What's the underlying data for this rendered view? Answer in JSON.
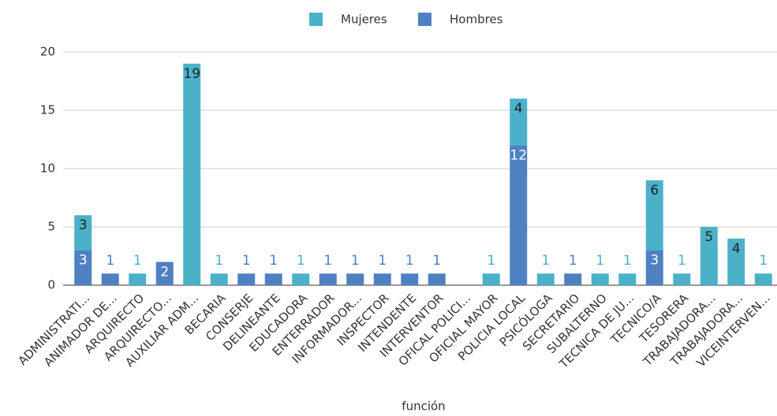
{
  "chart_data": {
    "type": "stacked_bar",
    "x_label": "función",
    "categories": [
      "ADMINISTRATI...",
      "ANIMADOR DE...",
      "ARQUIRECTO",
      "ARQUIRECTO...",
      "AUXILIAR ADM...",
      "BECARIA",
      "CONSERJE",
      "DELINEANTE",
      "EDUCADORA",
      "ENTERRADOR",
      "INFORMADOR...",
      "INSPECTOR",
      "INTENDENTE",
      "INTERVENTOR",
      "OFICAL POLICI...",
      "OFICIAL MAYOR",
      "POLICIA LOCAL",
      "PSICÓLOGA",
      "SECRETARIO",
      "SUBALTERNO",
      "TECNICA DE JU...",
      "TECNICO/A",
      "TESORERA",
      "TRABAJADORA...",
      "TRABAJADORA...",
      "VICEINTERVEN..."
    ],
    "series": [
      {
        "name": "Hombres",
        "color": "#4f81c2",
        "values": [
          3,
          1,
          null,
          2,
          null,
          null,
          1,
          1,
          null,
          1,
          1,
          1,
          1,
          1,
          null,
          null,
          12,
          null,
          1,
          null,
          null,
          3,
          null,
          null,
          null,
          null
        ]
      },
      {
        "name": "Mujeres",
        "color": "#4bb1c9",
        "values": [
          3,
          null,
          1,
          null,
          19,
          1,
          null,
          null,
          1,
          null,
          null,
          null,
          null,
          null,
          null,
          1,
          4,
          1,
          null,
          1,
          1,
          6,
          1,
          5,
          4,
          1
        ]
      }
    ],
    "legend_order": [
      1,
      0
    ],
    "ylim": [
      0,
      20
    ],
    "yticks": [
      0,
      5,
      10,
      15,
      20
    ],
    "grid": true,
    "legend": "top"
  }
}
